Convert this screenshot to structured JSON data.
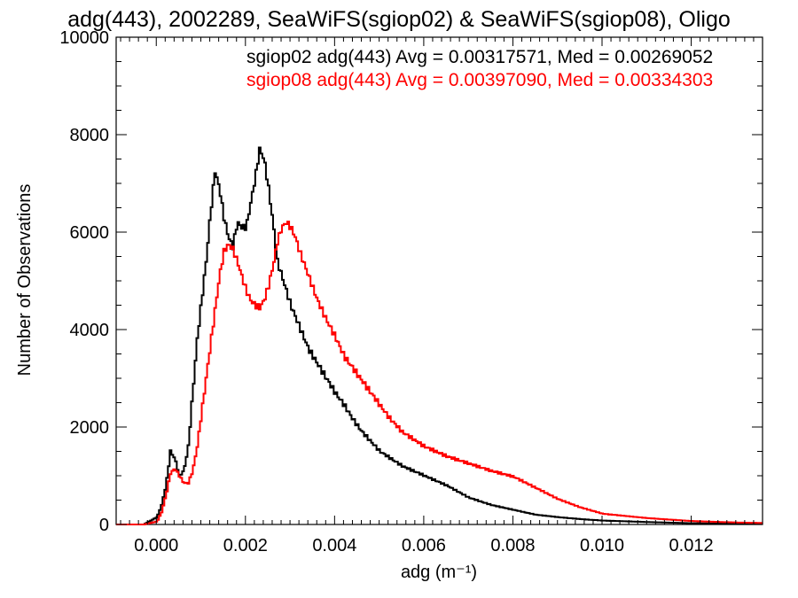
{
  "chart_data": {
    "type": "line",
    "title": "adg(443), 2002289, SeaWiFS(sgiop02) & SeaWiFS(sgiop08), Oligo",
    "xlabel": "adg (m⁻¹)",
    "ylabel": "Number of Observations",
    "xlim": [
      -0.0009,
      0.0136
    ],
    "ylim": [
      0,
      10000
    ],
    "xticks": [
      0.0,
      0.002,
      0.004,
      0.006,
      0.008,
      0.01,
      0.012
    ],
    "xtick_labels": [
      "0.000",
      "0.002",
      "0.004",
      "0.006",
      "0.008",
      "0.010",
      "0.012"
    ],
    "yticks": [
      0,
      2000,
      4000,
      6000,
      8000,
      10000
    ],
    "ytick_labels": [
      "0",
      "2000",
      "4000",
      "6000",
      "8000",
      "10000"
    ],
    "step_histogram": true,
    "grid": false,
    "series": [
      {
        "name": "sgiop02 adg(443) Avg = 0.00317571, Med = 0.00269052",
        "color": "#000000",
        "x": [
          -0.0009,
          -0.0003,
          0.0,
          0.0001,
          0.0002,
          0.0003,
          0.0004,
          0.0005,
          0.0006,
          0.0007,
          0.0008,
          0.0009,
          0.001,
          0.0011,
          0.0012,
          0.0013,
          0.0014,
          0.0015,
          0.0016,
          0.0017,
          0.0018,
          0.0019,
          0.002,
          0.0021,
          0.0022,
          0.0023,
          0.0024,
          0.0025,
          0.0026,
          0.0027,
          0.0028,
          0.0029,
          0.003,
          0.0032,
          0.0034,
          0.0036,
          0.0038,
          0.004,
          0.0042,
          0.0044,
          0.0046,
          0.0048,
          0.005,
          0.0055,
          0.006,
          0.0065,
          0.007,
          0.0075,
          0.008,
          0.0085,
          0.009,
          0.0095,
          0.01,
          0.011,
          0.012,
          0.013,
          0.0136
        ],
        "y": [
          0,
          0,
          150,
          400,
          800,
          1500,
          1350,
          1000,
          1100,
          1600,
          2700,
          3800,
          4600,
          5400,
          6400,
          7250,
          6900,
          6300,
          5900,
          5700,
          6200,
          6100,
          6100,
          6600,
          7100,
          7700,
          7500,
          6900,
          6200,
          5400,
          5100,
          4800,
          4500,
          4050,
          3600,
          3300,
          3000,
          2700,
          2450,
          2150,
          1900,
          1700,
          1500,
          1200,
          1000,
          800,
          550,
          400,
          300,
          200,
          150,
          110,
          80,
          50,
          25,
          15,
          10
        ]
      },
      {
        "name": "sgiop08 adg(443) Avg = 0.00397090, Med = 0.00334303",
        "color": "#ff0000",
        "x": [
          -0.0009,
          -0.0003,
          0.0,
          0.0001,
          0.0002,
          0.0003,
          0.0004,
          0.0005,
          0.0006,
          0.0007,
          0.0008,
          0.0009,
          0.001,
          0.0011,
          0.0012,
          0.0013,
          0.0014,
          0.0015,
          0.0016,
          0.0017,
          0.0018,
          0.0019,
          0.002,
          0.0021,
          0.0022,
          0.0023,
          0.0024,
          0.0025,
          0.0026,
          0.0027,
          0.0028,
          0.0029,
          0.003,
          0.0031,
          0.0032,
          0.0034,
          0.0036,
          0.0038,
          0.004,
          0.0042,
          0.0044,
          0.0046,
          0.0048,
          0.005,
          0.0052,
          0.0055,
          0.006,
          0.0065,
          0.007,
          0.0075,
          0.008,
          0.0085,
          0.009,
          0.0095,
          0.01,
          0.011,
          0.012,
          0.013,
          0.0136
        ],
        "y": [
          0,
          0,
          60,
          250,
          600,
          1050,
          1150,
          1000,
          850,
          850,
          1100,
          1600,
          2300,
          3000,
          3700,
          4400,
          5100,
          5600,
          5750,
          5650,
          5400,
          5100,
          4800,
          4600,
          4500,
          4450,
          4600,
          4900,
          5300,
          5800,
          6100,
          6200,
          6100,
          5900,
          5600,
          5100,
          4600,
          4200,
          3850,
          3450,
          3200,
          2950,
          2700,
          2450,
          2200,
          1900,
          1600,
          1400,
          1250,
          1100,
          980,
          750,
          520,
          350,
          220,
          130,
          70,
          40,
          30
        ]
      }
    ]
  }
}
